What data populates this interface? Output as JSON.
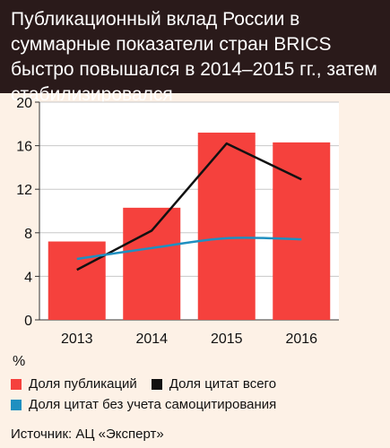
{
  "title": "Публикационный вклад России в суммарные показатели стран BRICS быстро повышался в 2014–2015 гг., затем стабилизировался",
  "unit": "%",
  "source": "Источник: АЦ «Эксперт»",
  "colors": {
    "title_bg": "#2a1a1a",
    "page_bg": "#fdf1e6",
    "bar": "#f5413d",
    "total_line": "#111111",
    "noself_line": "#1f8fc0"
  },
  "chart_data": {
    "type": "bar",
    "title": "Публикационный вклад России в суммарные показатели стран BRICS быстро повышался в 2014–2015 гг., затем стабилизировался",
    "categories": [
      "2013",
      "2014",
      "2015",
      "2016"
    ],
    "ylim": [
      0,
      20
    ],
    "yticks": [
      0,
      4,
      8,
      12,
      16,
      20
    ],
    "grid": true,
    "legend_position": "bottom",
    "series": [
      {
        "name": "Доля публикаций",
        "kind": "bar",
        "values": [
          7.2,
          10.3,
          17.2,
          16.3
        ]
      },
      {
        "name": "Доля цитат всего",
        "kind": "line",
        "values": [
          4.6,
          8.2,
          16.2,
          12.9
        ]
      },
      {
        "name": "Доля цитат без учета самоцитирования",
        "kind": "line",
        "values": [
          5.6,
          6.6,
          7.5,
          7.4
        ]
      }
    ]
  }
}
